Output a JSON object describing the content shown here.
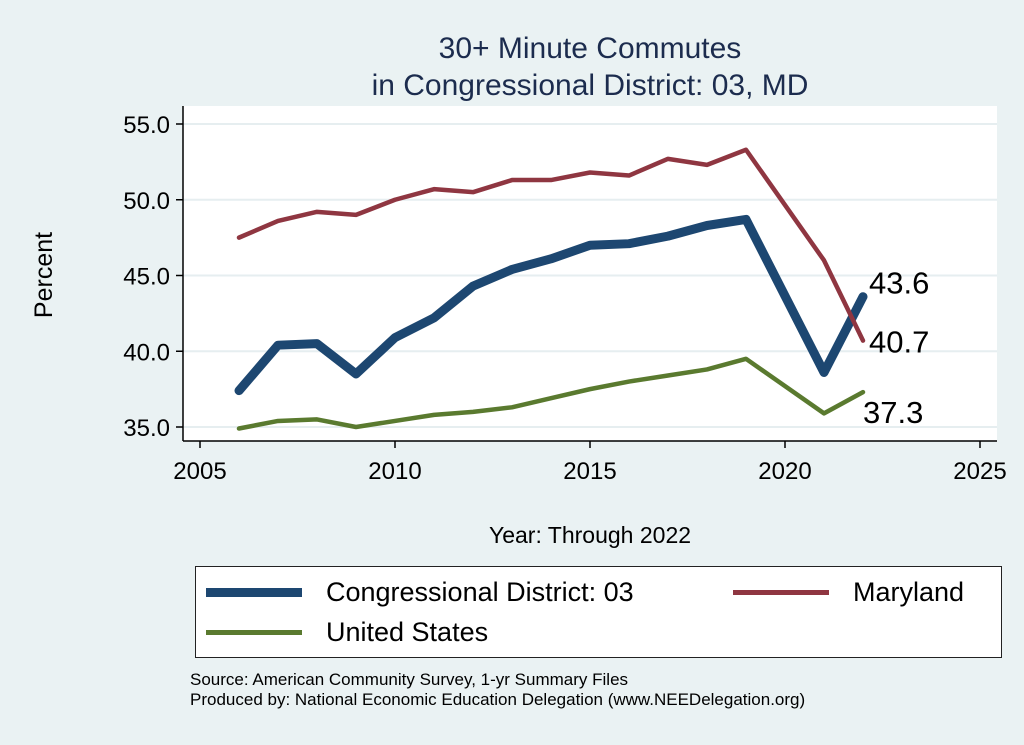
{
  "chart_data": {
    "type": "line",
    "title": [
      "30+ Minute Commutes",
      "in Congressional District:  03, MD"
    ],
    "xlabel": "Year: Through 2022",
    "ylabel": "Percent",
    "xlim": [
      2005,
      2025
    ],
    "ylim": [
      35.0,
      55.0
    ],
    "xticks": [
      2005,
      2010,
      2015,
      2020,
      2025
    ],
    "yticks": [
      "35.0",
      "40.0",
      "45.0",
      "50.0",
      "55.0"
    ],
    "grid": true,
    "legend_position": "bottom",
    "x": [
      2006,
      2007,
      2008,
      2009,
      2010,
      2011,
      2012,
      2013,
      2014,
      2015,
      2016,
      2017,
      2018,
      2019,
      2021,
      2022
    ],
    "series": [
      {
        "name": "Congressional District:  03",
        "color": "#1d4771",
        "width": 9,
        "values": [
          37.4,
          40.4,
          40.5,
          38.5,
          40.9,
          42.2,
          44.3,
          45.4,
          46.1,
          47.0,
          47.1,
          47.6,
          48.3,
          48.7,
          38.6,
          43.6
        ],
        "end_label": "43.6"
      },
      {
        "name": "Maryland",
        "color": "#8f3641",
        "width": 4.5,
        "values": [
          47.5,
          48.6,
          49.2,
          49.0,
          50.0,
          50.7,
          50.5,
          51.3,
          51.3,
          51.8,
          51.6,
          52.7,
          52.3,
          53.3,
          46.0,
          40.7
        ],
        "end_label": "40.7"
      },
      {
        "name": "United States",
        "color": "#5a7a2f",
        "width": 4.5,
        "values": [
          34.9,
          35.4,
          35.5,
          35.0,
          35.4,
          35.8,
          36.0,
          36.3,
          36.9,
          37.5,
          38.0,
          38.4,
          38.8,
          39.5,
          35.9,
          37.3
        ],
        "end_label": "37.3"
      }
    ]
  },
  "source_lines": [
    "Source: American Community Survey, 1-yr Summary Files",
    "Produced by: National Economic Education Delegation (www.NEEDelegation.org)"
  ]
}
